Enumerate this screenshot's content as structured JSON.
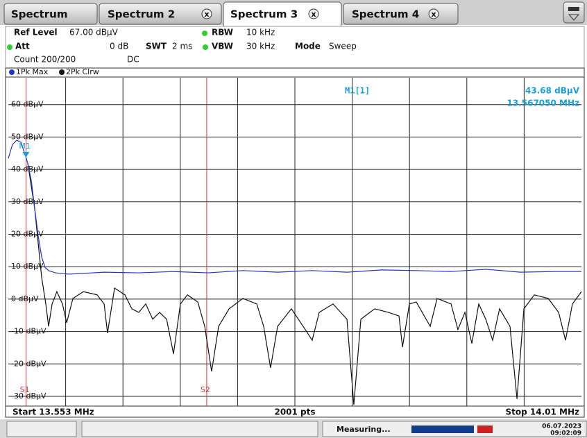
{
  "tabs": [
    "Spectrum",
    "Spectrum 2",
    "Spectrum 3",
    "Spectrum 4"
  ],
  "header": {
    "ref_level_label": "Ref Level",
    "ref_level": "67.00 dBµV",
    "att_label": "Att",
    "att": "0 dB",
    "swt_label": "SWT",
    "swt": "2 ms",
    "rbw_label": "RBW",
    "rbw": "10 kHz",
    "vbw_label": "VBW",
    "vbw": "30 kHz",
    "mode_label": "Mode",
    "mode": "Sweep",
    "count": "Count 200/200",
    "coupling": "DC"
  },
  "chart_data": {
    "type": "line",
    "series": [
      {
        "name": "1Pk Max",
        "color": "#2233cc",
        "x": [
          13.553,
          13.5563,
          13.5596,
          13.563,
          13.5663,
          13.5685,
          13.5713,
          13.574,
          13.5768,
          13.5796,
          13.5823,
          13.5851,
          13.5906,
          13.6017,
          13.6294,
          13.657,
          13.6847,
          13.7123,
          13.74,
          13.7677,
          13.7953,
          13.823,
          13.8507,
          13.8783,
          13.906,
          13.9337,
          13.9613,
          13.989,
          14.01
        ],
        "values": [
          43.4,
          47.7,
          49.0,
          48.4,
          44.7,
          41.9,
          36.6,
          28.0,
          19.5,
          13.0,
          9.8,
          8.8,
          8.1,
          7.7,
          8.3,
          8.1,
          8.5,
          8.1,
          8.8,
          8.3,
          8.8,
          8.3,
          9.0,
          8.8,
          8.5,
          9.2,
          8.3,
          8.5,
          8.5
        ]
      },
      {
        "name": "2Pk Clrw",
        "color": "#111111",
        "x": [
          13.5685,
          13.574,
          13.5796,
          13.5829,
          13.5851,
          13.5879,
          13.5917,
          13.5962,
          13.5995,
          13.6045,
          13.6128,
          13.6238,
          13.6294,
          13.6321,
          13.6377,
          13.646,
          13.6515,
          13.657,
          13.6626,
          13.6681,
          13.6736,
          13.6792,
          13.6847,
          13.6902,
          13.6958,
          13.7041,
          13.7096,
          13.7151,
          13.7207,
          13.729,
          13.74,
          13.7511,
          13.7566,
          13.7621,
          13.7677,
          13.7787,
          13.7898,
          13.7953,
          13.8009,
          13.8119,
          13.823,
          13.8285,
          13.8341,
          13.8451,
          13.8562,
          13.8645,
          13.8673,
          13.8728,
          13.8783,
          13.8894,
          13.8949,
          13.906,
          13.9115,
          13.9171,
          13.9226,
          13.9281,
          13.9337,
          13.9392,
          13.9447,
          13.953,
          13.9586,
          13.9641,
          13.9724,
          13.9835,
          13.9918,
          13.9973,
          14.0028,
          14.01
        ],
        "values": [
          41.9,
          28.0,
          6.6,
          -1.5,
          -8.4,
          -1.5,
          2.3,
          -1.5,
          -7.3,
          0.2,
          2.3,
          1.3,
          -1.5,
          -10.5,
          3.4,
          1.3,
          -3.0,
          -4.1,
          -1.5,
          -6.2,
          -4.1,
          -6.2,
          -16.9,
          -1.5,
          1.3,
          -0.9,
          -8.4,
          -22.3,
          -8.4,
          -3.0,
          0.2,
          -1.5,
          -8.4,
          -21.2,
          -8.4,
          -3.0,
          -9.4,
          -12.7,
          -4.1,
          -1.5,
          -6.2,
          -32.6,
          -6.2,
          -3.0,
          -4.1,
          -5.2,
          -14.8,
          -1.5,
          -0.9,
          -8.4,
          0.2,
          -1.5,
          -9.4,
          -4.1,
          -13.7,
          -1.5,
          -6.2,
          -12.7,
          -3.0,
          -8.4,
          -30.8,
          -3.0,
          1.3,
          0.2,
          -4.1,
          -12.7,
          -1.5,
          2.3
        ]
      }
    ],
    "xlim": [
      13.553,
      14.01
    ],
    "ylim": [
      -33,
      67
    ],
    "yticks": [
      {
        "value": 60,
        "label": "60 dBµV"
      },
      {
        "value": 50,
        "label": "50 dBµV"
      },
      {
        "value": 40,
        "label": "40 dBµV"
      },
      {
        "value": 30,
        "label": "30 dBµV"
      },
      {
        "value": 20,
        "label": "20 dBµV"
      },
      {
        "value": 10,
        "label": "10 dBµV"
      },
      {
        "value": 0,
        "label": "0 dBµV"
      },
      {
        "value": -10,
        "label": "-10 dBµV"
      },
      {
        "value": -20,
        "label": "-20 dBµV"
      },
      {
        "value": -30,
        "label": "-30 dBµV"
      }
    ],
    "grid": true,
    "markers": [
      {
        "name": "M1",
        "x": 13.56705,
        "value": 43.68,
        "color": "#1a9ee0",
        "readout": "M1[1]",
        "value_label": "43.68 dBµV",
        "x_label": "13.567050 MHz"
      }
    ],
    "lines": [
      {
        "name": "S1",
        "x": 13.5672,
        "color": "#e03030"
      },
      {
        "name": "S2",
        "x": 13.7112,
        "color": "#e03030"
      }
    ],
    "start": "Start 13.553 MHz",
    "points": "2001 pts",
    "stop": "Stop 14.01 MHz"
  },
  "status": {
    "state": "Measuring...",
    "date": "06.07.2023",
    "time": "09:02:09"
  }
}
